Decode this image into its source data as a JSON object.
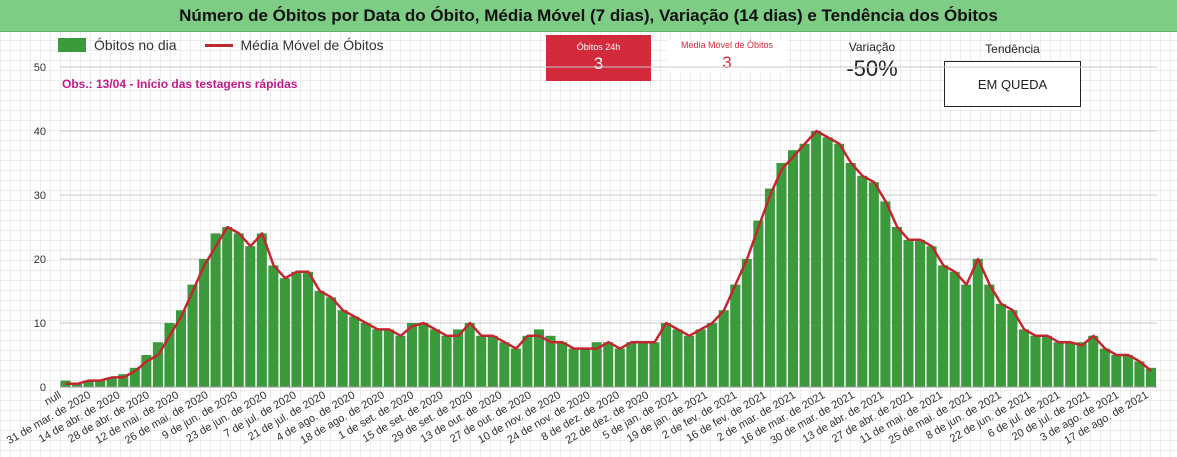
{
  "header": {
    "title": "Número de Óbitos por Data do Óbito, Média Móvel (7 dias), Variação (14 dias) e Tendência dos Óbitos"
  },
  "legend": {
    "bars_label": "Óbitos no dia",
    "line_label": "Média Móvel de Óbitos"
  },
  "note": "Obs.: 13/04 - Início das testagens rápidas",
  "kpis": {
    "deaths_24h": {
      "label": "Óbitos 24h",
      "value": "3"
    },
    "moving_avg": {
      "label": "Média Móvel de Óbitos",
      "value": "3"
    },
    "variation": {
      "label": "Variação",
      "value": "-50%"
    },
    "trend": {
      "label": "Tendência",
      "value": "EM QUEDA"
    }
  },
  "colors": {
    "bars": "#3b9a3b",
    "line": "#c0282f",
    "header": "#7dcd85",
    "kpi_red": "#d32a3b"
  },
  "chart_data": {
    "type": "bar",
    "title": "Número de Óbitos por Data do Óbito, Média Móvel (7 dias), Variação (14 dias) e Tendência dos Óbitos",
    "ylim": [
      0,
      50
    ],
    "y_ticks": [
      0,
      10,
      20,
      30,
      40,
      50
    ],
    "grid": true,
    "legend_position": "top-left",
    "x_tick_labels": [
      "null",
      "31 de mar. de 2020",
      "14 de abr. de 2020",
      "28 de abr. de 2020",
      "12 de mai. de 2020",
      "26 de mai. de 2020",
      "9 de jun. de 2020",
      "23 de jun. de 2020",
      "7 de jul. de 2020",
      "21 de jul. de 2020",
      "4 de ago. de 2020",
      "18 de ago. de 2020",
      "1 de set. de 2020",
      "15 de set. de 2020",
      "29 de set. de 2020",
      "13 de out. de 2020",
      "27 de out. de 2020",
      "10 de nov. de 2020",
      "24 de nov. de 2020",
      "8 de dez. de 2020",
      "22 de dez. de 2020",
      "5 de jan. de 2021",
      "19 de jan. de 2021",
      "2 de fev. de 2021",
      "16 de fev. de 2021",
      "2 de mar. de 2021",
      "16 de mar. de 2021",
      "30 de mar. de 2021",
      "13 de abr. de 2021",
      "27 de abr. de 2021",
      "11 de mai. de 2021",
      "25 de mai. de 2021",
      "8 de jun. de 2021",
      "22 de jun. de 2021",
      "6 de jul. de 2021",
      "20 de jul. de 2021",
      "3 de ago. de 2021",
      "17 de ago. de 2021"
    ],
    "weekly_series": [
      {
        "name": "Óbitos no dia",
        "values": [
          1,
          0.5,
          1,
          1,
          1.5,
          2,
          3,
          5,
          7,
          10,
          12,
          16,
          20,
          24,
          25,
          24,
          22,
          24,
          19,
          17,
          18,
          18,
          15,
          14,
          12,
          11,
          10,
          9,
          9,
          8,
          10,
          10,
          9,
          8,
          9,
          10,
          8,
          8,
          7,
          6,
          8,
          9,
          8,
          7,
          6,
          6,
          7,
          7,
          6,
          7,
          7,
          7,
          10,
          9,
          8,
          9,
          10,
          12,
          16,
          20,
          26,
          31,
          35,
          37,
          38,
          40,
          39,
          38,
          35,
          33,
          32,
          29,
          25,
          23,
          23,
          22,
          19,
          18,
          16,
          20,
          16,
          13,
          12,
          9,
          8,
          8,
          7,
          7,
          7,
          8,
          6,
          5,
          5,
          4,
          3
        ]
      },
      {
        "name": "Média Móvel de Óbitos",
        "values": [
          0.5,
          0.5,
          1,
          1,
          1.5,
          1.5,
          2.5,
          4,
          5,
          8,
          11,
          15,
          19,
          22,
          25,
          24,
          22,
          24,
          19,
          17,
          18,
          18,
          15,
          14,
          12,
          11,
          10,
          9,
          9,
          8,
          9.5,
          10,
          9,
          8,
          8,
          10,
          8,
          8,
          7,
          6,
          8,
          8,
          7,
          7,
          6,
          6,
          6,
          7,
          6,
          7,
          7,
          7,
          10,
          9,
          8,
          9,
          10,
          12,
          16,
          20,
          25,
          30,
          34,
          36,
          38,
          40,
          39,
          38,
          35,
          33,
          32,
          29,
          25,
          23,
          23,
          22,
          19,
          18,
          16,
          20,
          16,
          13,
          12,
          9,
          8,
          8,
          7,
          7,
          6.5,
          8,
          6,
          5,
          5,
          4,
          2.5
        ]
      }
    ]
  }
}
